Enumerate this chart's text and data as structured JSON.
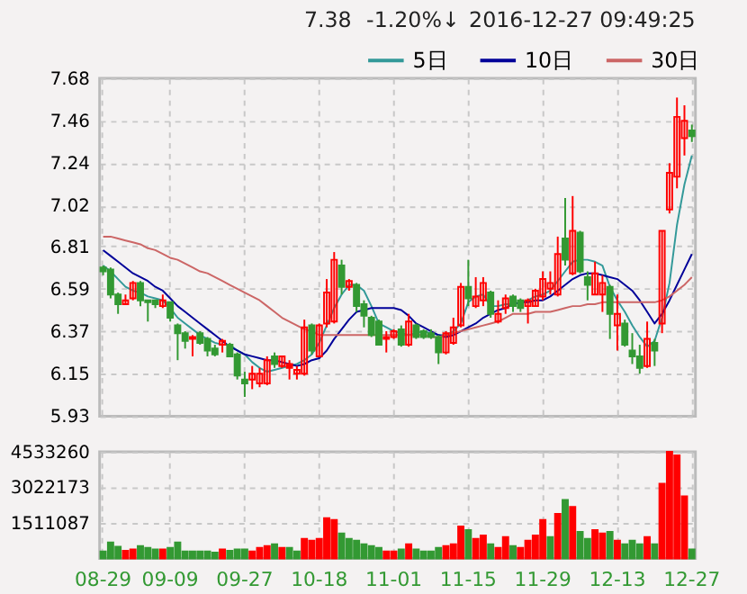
{
  "chart_data": [
    {
      "type": "candlestick",
      "annotations": [
        "7.38",
        "-1.20%↓",
        "2016-12-27 09:49:25"
      ],
      "tick_labels": "y",
      "ylim": [
        5.93,
        7.68
      ],
      "yticks": [
        5.93,
        6.15,
        6.37,
        6.59,
        6.81,
        7.02,
        7.24,
        7.46,
        7.68
      ],
      "grid": true,
      "legend": "top right",
      "ohlc": [
        [
          6.7,
          6.71,
          6.66,
          6.68
        ],
        [
          6.69,
          6.7,
          6.54,
          6.56
        ],
        [
          6.56,
          6.57,
          6.46,
          6.51
        ],
        [
          6.51,
          6.56,
          6.51,
          6.53
        ],
        [
          6.54,
          6.63,
          6.53,
          6.62
        ],
        [
          6.62,
          6.63,
          6.5,
          6.53
        ],
        [
          6.53,
          6.53,
          6.42,
          6.52
        ],
        [
          6.53,
          6.53,
          6.49,
          6.51
        ],
        [
          6.5,
          6.56,
          6.49,
          6.53
        ],
        [
          6.52,
          6.52,
          6.42,
          6.44
        ],
        [
          6.4,
          6.41,
          6.22,
          6.36
        ],
        [
          6.36,
          6.37,
          6.28,
          6.32
        ],
        [
          6.33,
          6.35,
          6.24,
          6.34
        ],
        [
          6.36,
          6.37,
          6.3,
          6.31
        ],
        [
          6.33,
          6.34,
          6.24,
          6.27
        ],
        [
          6.28,
          6.3,
          6.24,
          6.25
        ],
        [
          6.3,
          6.33,
          6.26,
          6.32
        ],
        [
          6.3,
          6.31,
          6.24,
          6.24
        ],
        [
          6.25,
          6.26,
          6.12,
          6.14
        ],
        [
          6.12,
          6.16,
          6.03,
          6.1
        ],
        [
          6.12,
          6.19,
          6.07,
          6.15
        ],
        [
          6.1,
          6.18,
          6.08,
          6.15
        ],
        [
          6.1,
          6.24,
          6.09,
          6.22
        ],
        [
          6.24,
          6.26,
          6.18,
          6.2
        ],
        [
          6.19,
          6.24,
          6.18,
          6.24
        ],
        [
          6.2,
          6.22,
          6.12,
          6.18
        ],
        [
          6.15,
          6.19,
          6.12,
          6.17
        ],
        [
          6.15,
          6.43,
          6.14,
          6.39
        ],
        [
          6.4,
          6.41,
          6.25,
          6.27
        ],
        [
          6.24,
          6.41,
          6.24,
          6.4
        ],
        [
          6.41,
          6.64,
          6.39,
          6.57
        ],
        [
          6.42,
          6.78,
          6.41,
          6.74
        ],
        [
          6.71,
          6.74,
          6.56,
          6.6
        ],
        [
          6.6,
          6.64,
          6.58,
          6.63
        ],
        [
          6.61,
          6.62,
          6.47,
          6.5
        ],
        [
          6.51,
          6.53,
          6.39,
          6.45
        ],
        [
          6.44,
          6.45,
          6.34,
          6.35
        ],
        [
          6.42,
          6.43,
          6.3,
          6.3
        ],
        [
          6.33,
          6.37,
          6.26,
          6.34
        ],
        [
          6.34,
          6.38,
          6.33,
          6.37
        ],
        [
          6.38,
          6.4,
          6.29,
          6.3
        ],
        [
          6.3,
          6.46,
          6.29,
          6.42
        ],
        [
          6.4,
          6.41,
          6.33,
          6.34
        ],
        [
          6.37,
          6.38,
          6.33,
          6.34
        ],
        [
          6.36,
          6.38,
          6.33,
          6.34
        ],
        [
          6.34,
          6.35,
          6.2,
          6.26
        ],
        [
          6.26,
          6.37,
          6.25,
          6.36
        ],
        [
          6.31,
          6.44,
          6.3,
          6.39
        ],
        [
          6.4,
          6.62,
          6.39,
          6.6
        ],
        [
          6.6,
          6.74,
          6.5,
          6.54
        ],
        [
          6.5,
          6.65,
          6.49,
          6.55
        ],
        [
          6.53,
          6.65,
          6.5,
          6.62
        ],
        [
          6.57,
          6.58,
          6.44,
          6.46
        ],
        [
          6.42,
          6.53,
          6.41,
          6.46
        ],
        [
          6.49,
          6.56,
          6.46,
          6.54
        ],
        [
          6.55,
          6.56,
          6.47,
          6.5
        ],
        [
          6.53,
          6.54,
          6.47,
          6.49
        ],
        [
          6.5,
          6.54,
          6.41,
          6.53
        ],
        [
          6.5,
          6.59,
          6.5,
          6.58
        ],
        [
          6.55,
          6.68,
          6.53,
          6.64
        ],
        [
          6.59,
          6.68,
          6.56,
          6.62
        ],
        [
          6.56,
          6.86,
          6.55,
          6.77
        ],
        [
          6.85,
          7.06,
          6.71,
          6.74
        ],
        [
          6.67,
          7.07,
          6.66,
          6.89
        ],
        [
          6.88,
          6.89,
          6.67,
          6.68
        ],
        [
          6.65,
          6.68,
          6.53,
          6.61
        ],
        [
          6.56,
          6.73,
          6.56,
          6.67
        ],
        [
          6.56,
          6.66,
          6.47,
          6.62
        ],
        [
          6.6,
          6.61,
          6.33,
          6.46
        ],
        [
          6.4,
          6.56,
          6.27,
          6.46
        ],
        [
          6.41,
          6.43,
          6.29,
          6.3
        ],
        [
          6.27,
          6.36,
          6.2,
          6.24
        ],
        [
          6.24,
          6.3,
          6.15,
          6.18
        ],
        [
          6.19,
          6.42,
          6.18,
          6.33
        ],
        [
          6.31,
          6.33,
          6.19,
          6.27
        ],
        [
          6.41,
          6.89,
          6.36,
          6.89
        ],
        [
          7.0,
          7.24,
          6.98,
          7.19
        ],
        [
          7.17,
          7.58,
          7.11,
          7.48
        ],
        [
          7.37,
          7.54,
          7.28,
          7.46
        ],
        [
          7.41,
          7.44,
          7.35,
          7.38
        ]
      ],
      "colors": [
        "#339933",
        "#339933",
        "#339933",
        "#ff0000",
        "#ff0000",
        "#339933",
        "#339933",
        "#339933",
        "#ff0000",
        "#339933",
        "#339933",
        "#339933",
        "#ff0000",
        "#339933",
        "#339933",
        "#339933",
        "#ff0000",
        "#339933",
        "#339933",
        "#339933",
        "#ff0000",
        "#ff0000",
        "#ff0000",
        "#339933",
        "#ff0000",
        "#ff0000",
        "#ff0000",
        "#ff0000",
        "#339933",
        "#ff0000",
        "#ff0000",
        "#ff0000",
        "#339933",
        "#ff0000",
        "#339933",
        "#339933",
        "#339933",
        "#339933",
        "#ff0000",
        "#ff0000",
        "#339933",
        "#ff0000",
        "#339933",
        "#339933",
        "#339933",
        "#339933",
        "#ff0000",
        "#ff0000",
        "#ff0000",
        "#339933",
        "#ff0000",
        "#ff0000",
        "#339933",
        "#ff0000",
        "#ff0000",
        "#339933",
        "#339933",
        "#ff0000",
        "#ff0000",
        "#ff0000",
        "#ff0000",
        "#ff0000",
        "#339933",
        "#ff0000",
        "#339933",
        "#339933",
        "#ff0000",
        "#ff0000",
        "#339933",
        "#ff0000",
        "#339933",
        "#339933",
        "#339933",
        "#ff0000",
        "#339933",
        "#ff0000",
        "#ff0000",
        "#ff0000",
        "#ff0000",
        "#339933"
      ],
      "series": [
        {
          "type": "line",
          "name": "5日",
          "color": "#339999",
          "values": [
            6.71,
            6.68,
            6.64,
            6.6,
            6.58,
            6.57,
            6.55,
            6.54,
            6.53,
            6.49,
            6.44,
            6.41,
            6.38,
            6.35,
            6.33,
            6.31,
            6.3,
            6.3,
            6.27,
            6.25,
            6.21,
            6.18,
            6.16,
            6.17,
            6.18,
            6.19,
            6.2,
            6.22,
            6.25,
            6.31,
            6.4,
            6.49,
            6.56,
            6.61,
            6.61,
            6.58,
            6.5,
            6.41,
            6.39,
            6.37,
            6.36,
            6.35,
            6.36,
            6.37,
            6.36,
            6.35,
            6.35,
            6.37,
            6.41,
            6.52,
            6.55,
            6.56,
            6.5,
            6.5,
            6.51,
            6.51,
            6.52,
            6.53,
            6.55,
            6.56,
            6.58,
            6.63,
            6.68,
            6.73,
            6.74,
            6.74,
            6.73,
            6.71,
            6.6,
            6.53,
            6.47,
            6.4,
            6.34,
            6.29,
            6.32,
            6.44,
            6.62,
            6.92,
            7.13,
            7.28
          ]
        },
        {
          "type": "line",
          "name": "10日",
          "color": "#000099",
          "values": [
            6.79,
            6.76,
            6.73,
            6.7,
            6.67,
            6.65,
            6.63,
            6.6,
            6.58,
            6.54,
            6.5,
            6.47,
            6.44,
            6.41,
            6.38,
            6.35,
            6.32,
            6.29,
            6.27,
            6.25,
            6.24,
            6.23,
            6.22,
            6.22,
            6.21,
            6.2,
            6.19,
            6.2,
            6.22,
            6.23,
            6.27,
            6.33,
            6.38,
            6.43,
            6.47,
            6.48,
            6.49,
            6.49,
            6.49,
            6.49,
            6.48,
            6.45,
            6.41,
            6.39,
            6.37,
            6.35,
            6.34,
            6.35,
            6.37,
            6.39,
            6.41,
            6.44,
            6.46,
            6.48,
            6.49,
            6.51,
            6.52,
            6.52,
            6.53,
            6.53,
            6.55,
            6.58,
            6.61,
            6.64,
            6.66,
            6.67,
            6.67,
            6.66,
            6.65,
            6.64,
            6.61,
            6.58,
            6.53,
            6.47,
            6.41,
            6.46,
            6.53,
            6.61,
            6.69,
            6.77
          ]
        },
        {
          "type": "line",
          "name": "30日",
          "color": "#cc6666",
          "values": [
            6.86,
            6.86,
            6.85,
            6.84,
            6.83,
            6.82,
            6.8,
            6.79,
            6.77,
            6.75,
            6.74,
            6.72,
            6.7,
            6.68,
            6.67,
            6.65,
            6.63,
            6.61,
            6.59,
            6.57,
            6.55,
            6.53,
            6.5,
            6.47,
            6.44,
            6.42,
            6.4,
            6.38,
            6.37,
            6.35,
            6.35,
            6.35,
            6.35,
            6.35,
            6.35,
            6.35,
            6.35,
            6.35,
            6.35,
            6.35,
            6.35,
            6.35,
            6.35,
            6.35,
            6.34,
            6.34,
            6.35,
            6.36,
            6.37,
            6.38,
            6.39,
            6.4,
            6.41,
            6.42,
            6.44,
            6.46,
            6.46,
            6.46,
            6.47,
            6.47,
            6.47,
            6.48,
            6.49,
            6.5,
            6.5,
            6.51,
            6.51,
            6.52,
            6.52,
            6.52,
            6.52,
            6.52,
            6.52,
            6.52,
            6.52,
            6.53,
            6.55,
            6.58,
            6.61,
            6.65
          ]
        }
      ]
    },
    {
      "type": "bar",
      "categories": [
        "08-29",
        null,
        null,
        null,
        null,
        null,
        null,
        null,
        null,
        "09-09",
        null,
        null,
        null,
        null,
        null,
        null,
        null,
        null,
        null,
        "09-27",
        null,
        null,
        null,
        null,
        null,
        null,
        null,
        null,
        null,
        "10-18",
        null,
        null,
        null,
        null,
        null,
        null,
        null,
        null,
        null,
        "11-01",
        null,
        null,
        null,
        null,
        null,
        null,
        null,
        null,
        null,
        "11-15",
        null,
        null,
        null,
        null,
        null,
        null,
        null,
        null,
        null,
        "11-29",
        null,
        null,
        null,
        null,
        null,
        null,
        null,
        null,
        null,
        "12-13",
        null,
        null,
        null,
        null,
        null,
        null,
        null,
        null,
        null,
        "12-27"
      ],
      "values": [
        300000,
        680000,
        500000,
        330000,
        380000,
        530000,
        450000,
        380000,
        380000,
        450000,
        680000,
        300000,
        300000,
        300000,
        300000,
        250000,
        380000,
        330000,
        380000,
        380000,
        300000,
        450000,
        530000,
        600000,
        450000,
        450000,
        300000,
        830000,
        760000,
        830000,
        1710000,
        1640000,
        1060000,
        830000,
        760000,
        600000,
        530000,
        450000,
        300000,
        300000,
        380000,
        600000,
        380000,
        300000,
        300000,
        450000,
        530000,
        600000,
        1360000,
        1210000,
        830000,
        980000,
        600000,
        450000,
        910000,
        530000,
        450000,
        760000,
        980000,
        1640000,
        910000,
        1890000,
        2490000,
        2190000,
        1130000,
        830000,
        1210000,
        1060000,
        1130000,
        760000,
        600000,
        760000,
        600000,
        910000,
        600000,
        3170000,
        4530000,
        4380000,
        2640000,
        380000
      ],
      "colors": [
        "#339933",
        "#339933",
        "#339933",
        "#ff0000",
        "#ff0000",
        "#339933",
        "#339933",
        "#339933",
        "#ff0000",
        "#339933",
        "#339933",
        "#339933",
        "#339933",
        "#339933",
        "#339933",
        "#339933",
        "#ff0000",
        "#339933",
        "#339933",
        "#339933",
        "#ff0000",
        "#ff0000",
        "#ff0000",
        "#339933",
        "#ff0000",
        "#339933",
        "#339933",
        "#ff0000",
        "#ff0000",
        "#ff0000",
        "#ff0000",
        "#ff0000",
        "#339933",
        "#339933",
        "#339933",
        "#339933",
        "#339933",
        "#339933",
        "#ff0000",
        "#ff0000",
        "#339933",
        "#ff0000",
        "#339933",
        "#339933",
        "#339933",
        "#339933",
        "#ff0000",
        "#ff0000",
        "#ff0000",
        "#339933",
        "#ff0000",
        "#ff0000",
        "#339933",
        "#ff0000",
        "#ff0000",
        "#339933",
        "#ff0000",
        "#ff0000",
        "#ff0000",
        "#ff0000",
        "#339933",
        "#ff0000",
        "#339933",
        "#ff0000",
        "#339933",
        "#339933",
        "#ff0000",
        "#ff0000",
        "#339933",
        "#ff0000",
        "#339933",
        "#339933",
        "#339933",
        "#ff0000",
        "#339933",
        "#ff0000",
        "#ff0000",
        "#ff0000",
        "#ff0000",
        "#339933"
      ],
      "ylim": [
        0,
        4533260
      ],
      "yticks": [
        1511087,
        3022173,
        4533260
      ],
      "grid": true
    }
  ]
}
